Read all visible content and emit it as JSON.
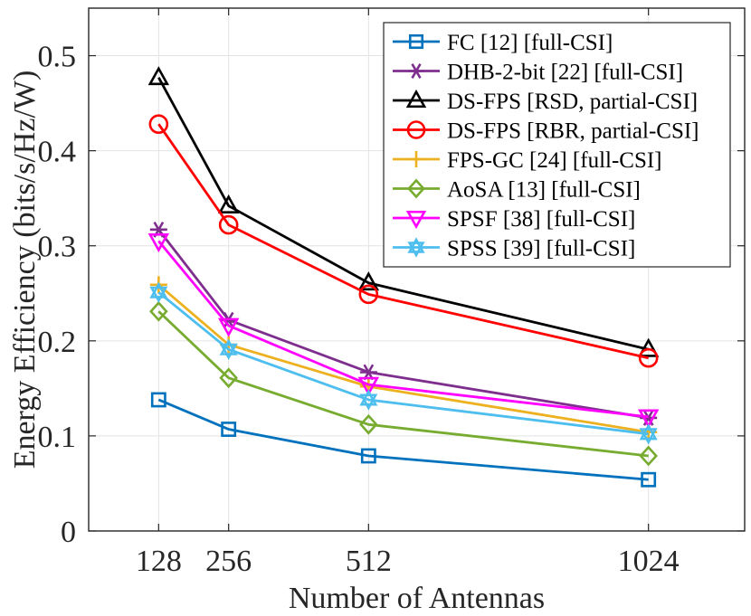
{
  "chart_data": {
    "type": "line",
    "title": "",
    "xlabel": "Number of Antennas",
    "ylabel": "Energy Efficiency (bits/s/Hz/W)",
    "x": [
      128,
      256,
      512,
      1024
    ],
    "x_tick_labels": [
      "128",
      "256",
      "512",
      "1024"
    ],
    "xlim": [
      0,
      1200
    ],
    "ylim": [
      0,
      0.55
    ],
    "y_ticks": [
      0,
      0.1,
      0.2,
      0.3,
      0.4,
      0.5
    ],
    "y_tick_labels": [
      "0",
      "0.1",
      "0.2",
      "0.3",
      "0.4",
      "0.5"
    ],
    "grid": true,
    "legend_position": "top-right",
    "series": [
      {
        "name": "FC [12] [full-CSI]",
        "color": "#0072BD",
        "marker": "square",
        "values": [
          0.138,
          0.107,
          0.079,
          0.054
        ]
      },
      {
        "name": "DHB-2-bit [22] [full-CSI]",
        "color": "#7E2F8E",
        "marker": "asterisk",
        "values": [
          0.317,
          0.222,
          0.167,
          0.119
        ]
      },
      {
        "name": "DS-FPS [RSD, partial-CSI]",
        "color": "#000000",
        "marker": "triangle-up",
        "values": [
          0.477,
          0.342,
          0.261,
          0.191
        ]
      },
      {
        "name": "DS-FPS [RBR, partial-CSI]",
        "color": "#FF0000",
        "marker": "circle",
        "values": [
          0.428,
          0.322,
          0.249,
          0.182
        ]
      },
      {
        "name": "FPS-GC [24] [full-CSI]",
        "color": "#EDB120",
        "marker": "plus",
        "values": [
          0.259,
          0.196,
          0.152,
          0.104
        ]
      },
      {
        "name": "AoSA [13] [full-CSI]",
        "color": "#77AC30",
        "marker": "diamond",
        "values": [
          0.231,
          0.161,
          0.112,
          0.079
        ]
      },
      {
        "name": "SPSF [38] [full-CSI]",
        "color": "#FF00FF",
        "marker": "triangle-down",
        "values": [
          0.305,
          0.216,
          0.154,
          0.12
        ]
      },
      {
        "name": "SPSS [39] [full-CSI]",
        "color": "#4DBEEE",
        "marker": "hexagram",
        "values": [
          0.251,
          0.191,
          0.138,
          0.102
        ]
      }
    ]
  }
}
